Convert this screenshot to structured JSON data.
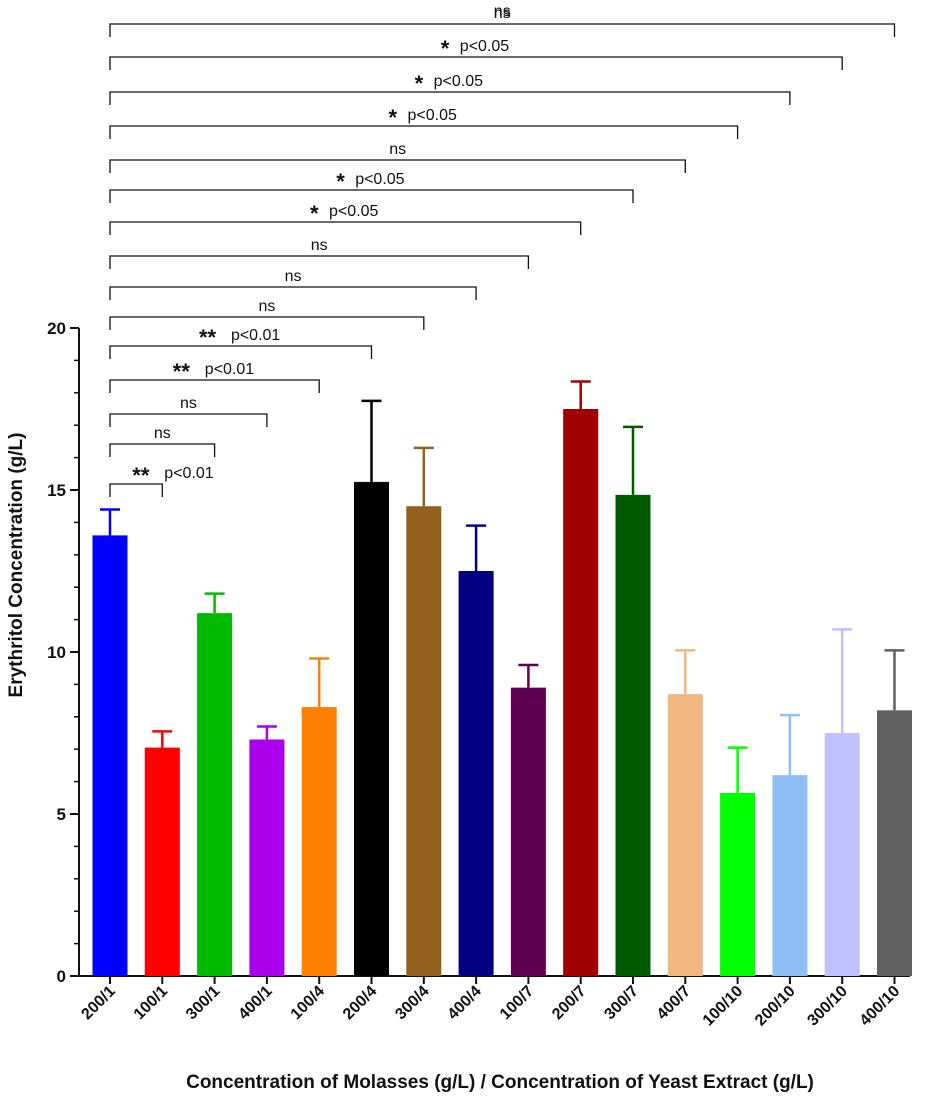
{
  "chart_data": {
    "type": "bar",
    "xlabel": "Concentration of Molasses (g/L) / Concentration of Yeast Extract (g/L)",
    "ylabel": "Erythritol Concentration (g/L)",
    "ylim": [
      0,
      20
    ],
    "yticks": [
      "0",
      "5",
      "10",
      "15",
      "20"
    ],
    "categories": [
      "200/1",
      "100/1",
      "300/1",
      "400/1",
      "100/4",
      "200/4",
      "300/4",
      "400/4",
      "100/7",
      "200/7",
      "300/7",
      "400/7",
      "100/10",
      "200/10",
      "300/10",
      "400/10"
    ],
    "values": [
      13.6,
      7.05,
      11.2,
      7.3,
      8.3,
      15.25,
      14.5,
      12.5,
      8.9,
      17.5,
      14.85,
      8.7,
      5.65,
      6.2,
      7.5,
      8.2
    ],
    "errors": [
      0.8,
      0.5,
      0.6,
      0.4,
      1.5,
      2.5,
      1.8,
      1.4,
      0.7,
      0.85,
      2.1,
      1.35,
      1.4,
      1.85,
      3.2,
      1.85
    ],
    "colors": [
      "#0000ff",
      "#ff0000",
      "#00bb00",
      "#aa00ee",
      "#ff8000",
      "#000000",
      "#946020",
      "#000080",
      "#600050",
      "#a00000",
      "#005a00",
      "#f0b880",
      "#00ff00",
      "#90bff8",
      "#c0c0ff",
      "#606060"
    ],
    "comparisons": [
      {
        "from": "200/1",
        "to": "100/1",
        "stars": "**",
        "label": "p<0.01"
      },
      {
        "from": "200/1",
        "to": "300/1",
        "stars": "",
        "label": "ns"
      },
      {
        "from": "200/1",
        "to": "400/1",
        "stars": "",
        "label": "ns"
      },
      {
        "from": "200/1",
        "to": "100/4",
        "stars": "**",
        "label": "p<0.01"
      },
      {
        "from": "200/1",
        "to": "200/4",
        "stars": "**",
        "label": "p<0.01"
      },
      {
        "from": "200/1",
        "to": "300/4",
        "stars": "",
        "label": "ns"
      },
      {
        "from": "200/1",
        "to": "400/4",
        "stars": "",
        "label": "ns"
      },
      {
        "from": "200/1",
        "to": "100/7",
        "stars": "",
        "label": "ns"
      },
      {
        "from": "200/1",
        "to": "200/7",
        "stars": "*",
        "label": "p<0.05"
      },
      {
        "from": "200/1",
        "to": "300/7",
        "stars": "*",
        "label": "p<0.05"
      },
      {
        "from": "200/1",
        "to": "400/7",
        "stars": "",
        "label": "ns"
      },
      {
        "from": "200/1",
        "to": "100/10",
        "stars": "*",
        "label": "p<0.05"
      },
      {
        "from": "200/1",
        "to": "200/10",
        "stars": "*",
        "label": "p<0.05"
      },
      {
        "from": "200/1",
        "to": "300/10",
        "stars": "*",
        "label": "p<0.05"
      },
      {
        "from": "200/1",
        "to": "400/10",
        "stars": "",
        "label": "ns"
      },
      {
        "from": "200/1",
        "to": "400/10",
        "stars": "",
        "label": "ns"
      }
    ]
  }
}
